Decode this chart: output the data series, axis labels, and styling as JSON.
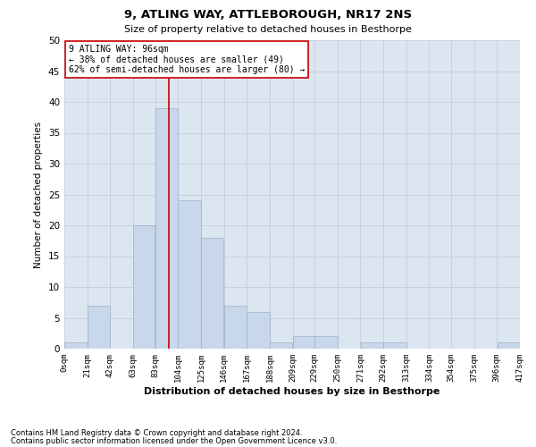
{
  "title": "9, ATLING WAY, ATTLEBOROUGH, NR17 2NS",
  "subtitle": "Size of property relative to detached houses in Besthorpe",
  "xlabel": "Distribution of detached houses by size in Besthorpe",
  "ylabel": "Number of detached properties",
  "bar_color": "#c8d8ea",
  "bar_edge_color": "#9ab0c8",
  "grid_color": "#c8d0dc",
  "background_color": "#dce6f0",
  "bin_edges": [
    0,
    21,
    42,
    63,
    83,
    104,
    125,
    146,
    167,
    188,
    209,
    229,
    250,
    271,
    292,
    313,
    334,
    354,
    375,
    396,
    417
  ],
  "bin_labels": [
    "0sqm",
    "21sqm",
    "42sqm",
    "63sqm",
    "83sqm",
    "104sqm",
    "125sqm",
    "146sqm",
    "167sqm",
    "188sqm",
    "209sqm",
    "229sqm",
    "250sqm",
    "271sqm",
    "292sqm",
    "313sqm",
    "334sqm",
    "354sqm",
    "375sqm",
    "396sqm",
    "417sqm"
  ],
  "counts": [
    1,
    7,
    0,
    20,
    39,
    24,
    18,
    7,
    6,
    1,
    2,
    2,
    0,
    1,
    1,
    0,
    0,
    0,
    0,
    1
  ],
  "property_label": "9 ATLING WAY: 96sqm",
  "annotation_line1": "← 38% of detached houses are smaller (49)",
  "annotation_line2": "62% of semi-detached houses are larger (80) →",
  "vline_x": 96,
  "vline_color": "#cc0000",
  "annotation_box_color": "#ffffff",
  "annotation_box_edge": "#cc0000",
  "ylim": [
    0,
    50
  ],
  "yticks": [
    0,
    5,
    10,
    15,
    20,
    25,
    30,
    35,
    40,
    45,
    50
  ],
  "footer_line1": "Contains HM Land Registry data © Crown copyright and database right 2024.",
  "footer_line2": "Contains public sector information licensed under the Open Government Licence v3.0."
}
